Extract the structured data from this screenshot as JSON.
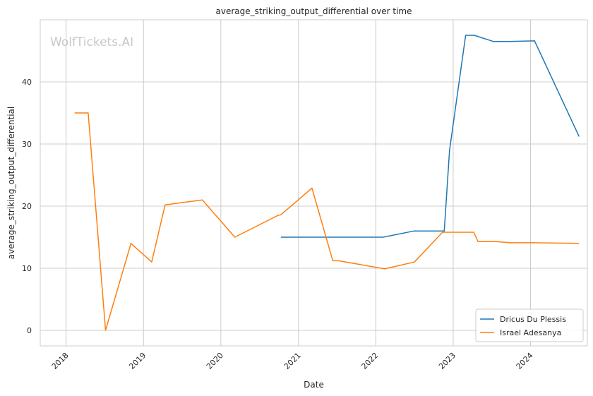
{
  "chart_data": {
    "type": "line",
    "title": "average_striking_output_differential over time",
    "xlabel": "Date",
    "ylabel": "average_striking_output_differential",
    "watermark": "WolfTickets.AI",
    "xlim": [
      "2017-09-01",
      "2024-09-25"
    ],
    "ylim": [
      -2.5,
      50
    ],
    "x_ticks": [
      "2018",
      "2019",
      "2020",
      "2021",
      "2022",
      "2023",
      "2024"
    ],
    "x_tick_dates": [
      "2018-01-01",
      "2019-01-01",
      "2020-01-01",
      "2021-01-01",
      "2022-01-01",
      "2023-01-01",
      "2024-01-01"
    ],
    "y_ticks": [
      0,
      10,
      20,
      30,
      40
    ],
    "grid": true,
    "legend_position": "lower-right",
    "series": [
      {
        "name": "Dricus Du Plessis",
        "color": "#1f77b4",
        "points": [
          [
            "2020-10-10",
            15.0
          ],
          [
            "2022-02-05",
            15.0
          ],
          [
            "2022-07-01",
            16.0
          ],
          [
            "2022-11-20",
            16.0
          ],
          [
            "2022-12-15",
            29.0
          ],
          [
            "2023-03-01",
            47.5
          ],
          [
            "2023-04-10",
            47.5
          ],
          [
            "2023-07-10",
            46.5
          ],
          [
            "2023-09-20",
            46.5
          ],
          [
            "2024-01-20",
            46.6
          ],
          [
            "2024-08-17",
            31.2
          ]
        ]
      },
      {
        "name": "Israel Adesanya",
        "color": "#ff7f0e",
        "points": [
          [
            "2018-02-10",
            35.0
          ],
          [
            "2018-04-15",
            35.0
          ],
          [
            "2018-07-06",
            0.0
          ],
          [
            "2018-11-03",
            14.0
          ],
          [
            "2019-02-09",
            11.0
          ],
          [
            "2019-04-13",
            20.2
          ],
          [
            "2019-10-06",
            21.0
          ],
          [
            "2020-03-07",
            15.0
          ],
          [
            "2020-09-26",
            18.5
          ],
          [
            "2020-10-10",
            18.6
          ],
          [
            "2021-03-06",
            22.9
          ],
          [
            "2021-06-12",
            11.2
          ],
          [
            "2021-07-10",
            11.2
          ],
          [
            "2022-02-12",
            9.9
          ],
          [
            "2022-07-02",
            11.0
          ],
          [
            "2022-11-12",
            15.8
          ],
          [
            "2023-04-08",
            15.8
          ],
          [
            "2023-04-28",
            14.3
          ],
          [
            "2023-07-20",
            14.3
          ],
          [
            "2023-10-01",
            14.1
          ],
          [
            "2024-01-15",
            14.1
          ],
          [
            "2024-08-17",
            14.0
          ]
        ]
      }
    ]
  }
}
